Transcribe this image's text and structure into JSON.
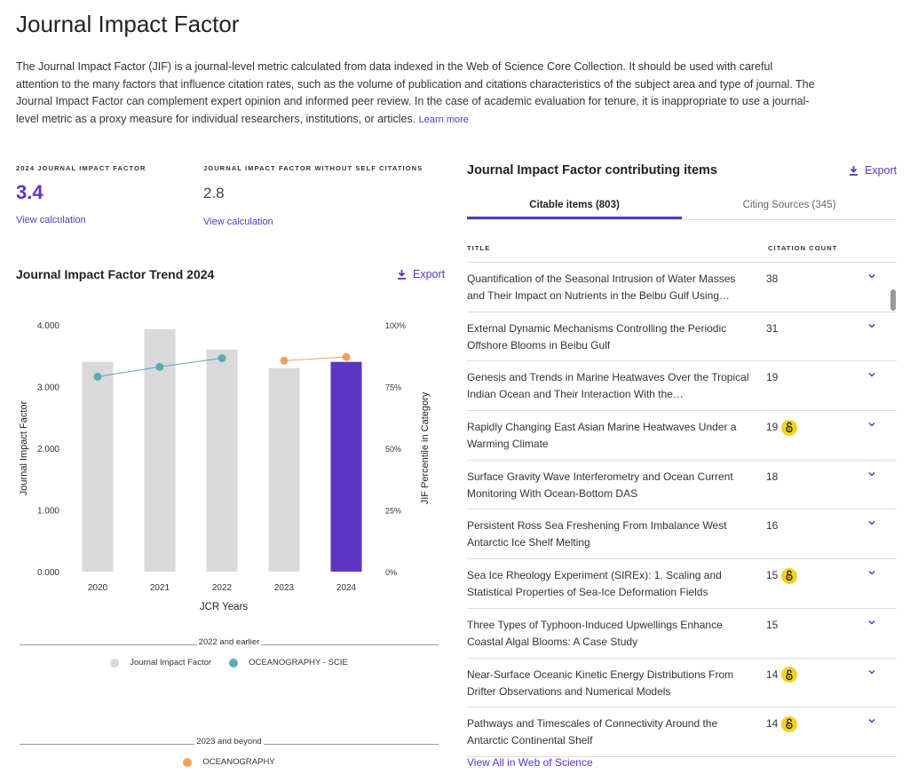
{
  "page": {
    "title": "Journal Impact Factor",
    "description": "The Journal Impact Factor (JIF) is a journal-level metric calculated from data indexed in the Web of Science Core Collection. It should be used with careful attention to the many factors that influence citation rates, such as the volume of publication and citations characteristics of the subject area and type of journal. The Journal Impact Factor can complement expert opinion and informed peer review. In the case of academic evaluation for tenure, it is inappropriate to use a journal-level metric as a proxy measure for individual researchers, institutions, or articles.",
    "learn_more": "Learn more"
  },
  "metrics": {
    "jif": {
      "label": "2024 JOURNAL IMPACT FACTOR",
      "value": "3.4",
      "link": "View calculation"
    },
    "jif_no_self": {
      "label": "JOURNAL IMPACT FACTOR WITHOUT SELF CITATIONS",
      "value": "2.8",
      "link": "View calculation"
    }
  },
  "trend": {
    "title": "Journal Impact Factor Trend 2024",
    "export": "Export"
  },
  "chart_data": {
    "type": "bar",
    "categories": [
      "2020",
      "2021",
      "2022",
      "2023",
      "2024"
    ],
    "series": [
      {
        "name": "Journal Impact Factor",
        "values": [
          3.4,
          3.93,
          3.6,
          3.3,
          3.4
        ],
        "axis": "left"
      },
      {
        "name": "OCEANOGRAPHY - SCIE",
        "values": [
          79,
          83,
          86.5,
          null,
          null
        ],
        "axis": "right",
        "type": "line"
      },
      {
        "name": "OCEANOGRAPHY",
        "values": [
          null,
          null,
          null,
          85.5,
          87
        ],
        "axis": "right",
        "type": "line"
      }
    ],
    "ylabel": "Journal Impact Factor",
    "y2label": "JIF Percentile in Category",
    "xlabel": "JCR Years",
    "ylim": [
      0,
      4
    ],
    "y_ticks": [
      "4.000",
      "3.000",
      "2.000",
      "1.000",
      "0.000"
    ],
    "y2lim": [
      0,
      100
    ],
    "y2_ticks": [
      "100%",
      "75%",
      "50%",
      "25%",
      "0%"
    ],
    "highlight_category": "2024",
    "colors": {
      "bar": "#d9d9d9",
      "bar_highlight": "#5c35c1",
      "line_scie": "#5ba9b9",
      "line_new": "#f0a060"
    },
    "legend_groups": [
      {
        "caption": "2022 and earlier",
        "items": [
          "Journal Impact Factor",
          "OCEANOGRAPHY - SCIE"
        ]
      },
      {
        "caption": "2023 and beyond",
        "items": [
          "OCEANOGRAPHY"
        ]
      }
    ]
  },
  "contributing": {
    "title": "Journal Impact Factor contributing items",
    "export": "Export",
    "tabs": [
      {
        "label": "Citable items (803)",
        "active": true
      },
      {
        "label": "Citing Sources (345)",
        "active": false
      }
    ],
    "columns": {
      "title": "TITLE",
      "count": "CITATION COUNT"
    },
    "rows": [
      {
        "title": "Quantification of the Seasonal Intrusion of Water Masses and Their Impact on Nutrients in the Beibu Gulf Using…",
        "count": "38",
        "open_access": false
      },
      {
        "title": "External Dynamic Mechanisms Controlling the Periodic Offshore Blooms in Beibu Gulf",
        "count": "31",
        "open_access": false
      },
      {
        "title": "Genesis and Trends in Marine Heatwaves Over the Tropical Indian Ocean and Their Interaction With the…",
        "count": "19",
        "open_access": false
      },
      {
        "title": "Rapidly Changing East Asian Marine Heatwaves Under a Warming Climate",
        "count": "19",
        "open_access": true
      },
      {
        "title": "Surface Gravity Wave Interferometry and Ocean Current Monitoring With Ocean-Bottom DAS",
        "count": "18",
        "open_access": false
      },
      {
        "title": "Persistent Ross Sea Freshening From Imbalance West Antarctic Ice Shelf Melting",
        "count": "16",
        "open_access": false
      },
      {
        "title": "Sea Ice Rheology Experiment (SIREx): 1. Scaling and Statistical Properties of Sea-Ice Deformation Fields",
        "count": "15",
        "open_access": true
      },
      {
        "title": "Three Types of Typhoon-Induced Upwellings Enhance Coastal Algal Blooms: A Case Study",
        "count": "15",
        "open_access": false
      },
      {
        "title": "Near-Surface Oceanic Kinetic Energy Distributions From Drifter Observations and Numerical Models",
        "count": "14",
        "open_access": true
      },
      {
        "title": "Pathways and Timescales of Connectivity Around the Antarctic Continental Shelf",
        "count": "14",
        "open_access": true
      }
    ],
    "view_all": "View All in Web of Science"
  }
}
